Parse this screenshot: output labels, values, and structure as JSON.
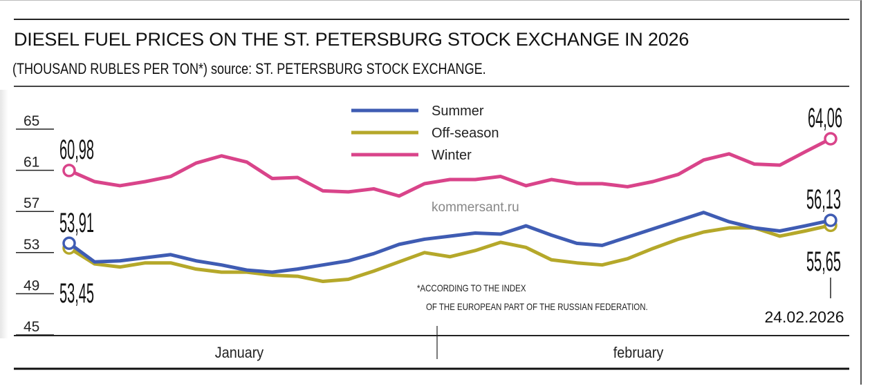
{
  "chart_data": {
    "type": "line",
    "title": "DIESEL FUEL PRICES ON THE ST. PETERSBURG STOCK EXCHANGE IN 2026",
    "subtitle": "(THOUSAND RUBLES PER TON*) source: ST. PETERSBURG STOCK EXCHANGE.",
    "xlabel": "",
    "ylabel": "",
    "ylim": [
      45,
      65
    ],
    "yticks": [
      "65",
      "61",
      "57",
      "53",
      "49",
      "45"
    ],
    "ytick_values": [
      65,
      61,
      57,
      53,
      49,
      45
    ],
    "grid": false,
    "legend_position": "top-center",
    "months": [
      "January",
      "february"
    ],
    "end_date": "24.02.2026",
    "n_points": 31,
    "series": [
      {
        "name": "Summer",
        "color": "#3f5cb3",
        "values": [
          53.91,
          52.1,
          52.2,
          52.5,
          52.8,
          52.2,
          51.8,
          51.3,
          51.1,
          51.4,
          51.8,
          52.2,
          52.9,
          53.8,
          54.3,
          54.6,
          54.9,
          54.8,
          55.6,
          54.7,
          53.9,
          53.7,
          54.5,
          55.3,
          56.1,
          56.9,
          56.0,
          55.4,
          55.1,
          55.6,
          56.13
        ],
        "start_label": "53,91",
        "end_label": "56,13"
      },
      {
        "name": "Off-season",
        "color": "#b5a82a",
        "values": [
          53.45,
          51.9,
          51.6,
          52.0,
          52.0,
          51.4,
          51.1,
          51.1,
          50.8,
          50.7,
          50.2,
          50.4,
          51.2,
          52.1,
          53.0,
          52.6,
          53.2,
          54.0,
          53.5,
          52.3,
          52.0,
          51.8,
          52.4,
          53.4,
          54.3,
          55.0,
          55.4,
          55.4,
          54.6,
          55.1,
          55.65
        ],
        "start_label": "53,45",
        "end_label": "55,65"
      },
      {
        "name": "Winter",
        "color": "#d9448a",
        "values": [
          60.98,
          59.9,
          59.5,
          59.9,
          60.4,
          61.7,
          62.4,
          61.8,
          60.2,
          60.3,
          59.0,
          58.9,
          59.2,
          58.5,
          59.7,
          60.1,
          60.1,
          60.4,
          59.5,
          60.1,
          59.7,
          59.7,
          59.4,
          59.9,
          60.6,
          62.0,
          62.6,
          61.6,
          61.5,
          62.8,
          64.06
        ],
        "start_label": "60,98",
        "end_label": "64,06"
      }
    ]
  },
  "watermark": "kommersant.ru",
  "footnote": {
    "line1": "*ACCORDING TO THE INDEX",
    "line2": "OF THE EUROPEAN PART OF THE RUSSIAN FEDERATION."
  }
}
